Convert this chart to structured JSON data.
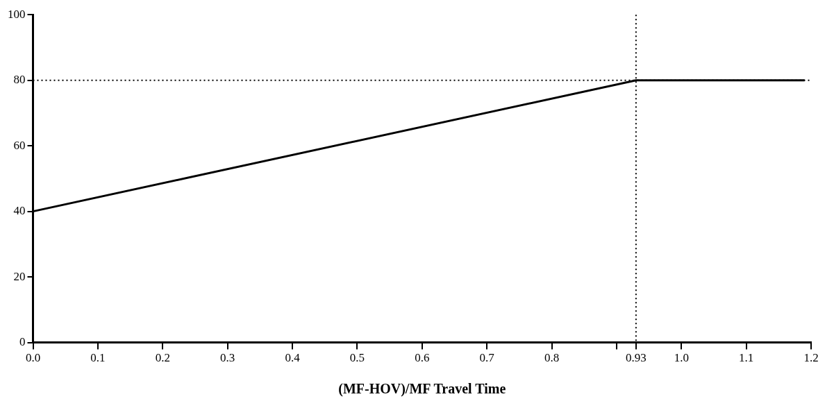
{
  "chart_data": {
    "type": "line",
    "xlabel": "(MF-HOV)/MF Travel Time",
    "x": [
      0,
      0.93,
      1.19
    ],
    "series": [
      {
        "color": "#000000",
        "values": [
          40,
          80,
          80
        ]
      }
    ],
    "xlim": [
      0,
      1.2
    ],
    "xticks": [
      {
        "value": 0,
        "label": "0.0"
      },
      {
        "value": 0.1,
        "label": "0.1"
      },
      {
        "value": 0.2,
        "label": "0.2"
      },
      {
        "value": 0.3,
        "label": "0.3"
      },
      {
        "value": 0.4,
        "label": "0.4"
      },
      {
        "value": 0.5,
        "label": "0.5"
      },
      {
        "value": 0.6,
        "label": "0.6"
      },
      {
        "value": 0.7,
        "label": "0.7"
      },
      {
        "value": 0.8,
        "label": "0.8"
      },
      {
        "value": 0.9,
        "label": null
      },
      {
        "value": 0.93,
        "label": "0.93"
      },
      {
        "value": 1.0,
        "label": "1.0"
      },
      {
        "value": 1.1,
        "label": "1.1"
      },
      {
        "value": 1.2,
        "label": "1.2"
      }
    ],
    "ylim": [
      0,
      100
    ],
    "yticks": [
      0,
      20,
      40,
      60,
      80,
      100
    ],
    "ref_lines": [
      {
        "axis": "y",
        "value": 80,
        "line_style": "dotted",
        "color": "#000000"
      },
      {
        "axis": "x",
        "value": 0.93,
        "line_style": "dotted",
        "color": "#000000"
      }
    ],
    "grid": false,
    "legend": false,
    "marker": "none",
    "line_style": "solid"
  }
}
